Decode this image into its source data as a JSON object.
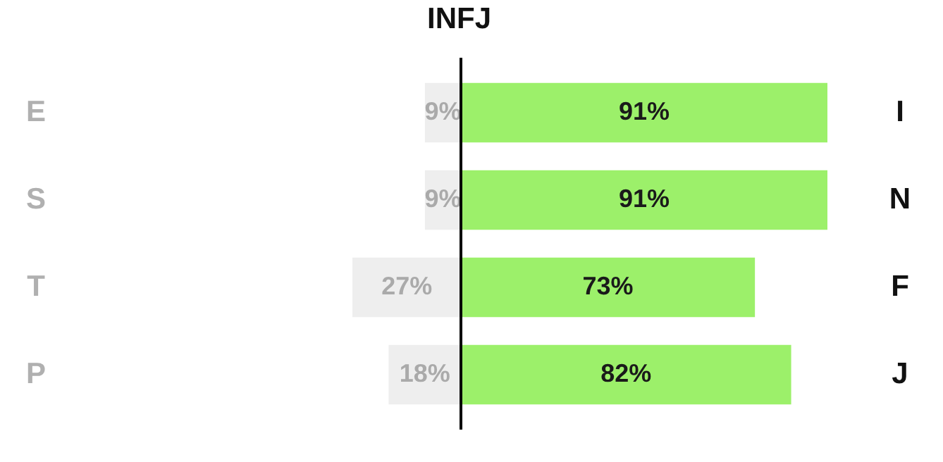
{
  "chart_data": [
    {
      "type": "bar",
      "orientation": "horizontal",
      "categories": [
        "E",
        "S",
        "T",
        "P"
      ],
      "series": [
        {
          "color": "#eeeeee",
          "values": [
            9,
            9,
            27,
            18
          ],
          "value_labels": [
            "9%",
            "9%",
            "27%",
            "18%"
          ]
        }
      ],
      "tick_labels": "y"
    },
    {
      "type": "bar",
      "orientation": "horizontal",
      "title": "INFJ",
      "categories": [
        "I",
        "N",
        "F",
        "J"
      ],
      "series": [
        {
          "color": "#9cf06a",
          "values": [
            91,
            91,
            73,
            82
          ],
          "value_labels": [
            "91%",
            "91%",
            "73%",
            "82%"
          ]
        }
      ],
      "tick_labels": "y",
      "ref_lines": [
        {
          "axis": "x",
          "value": 0
        }
      ]
    }
  ]
}
